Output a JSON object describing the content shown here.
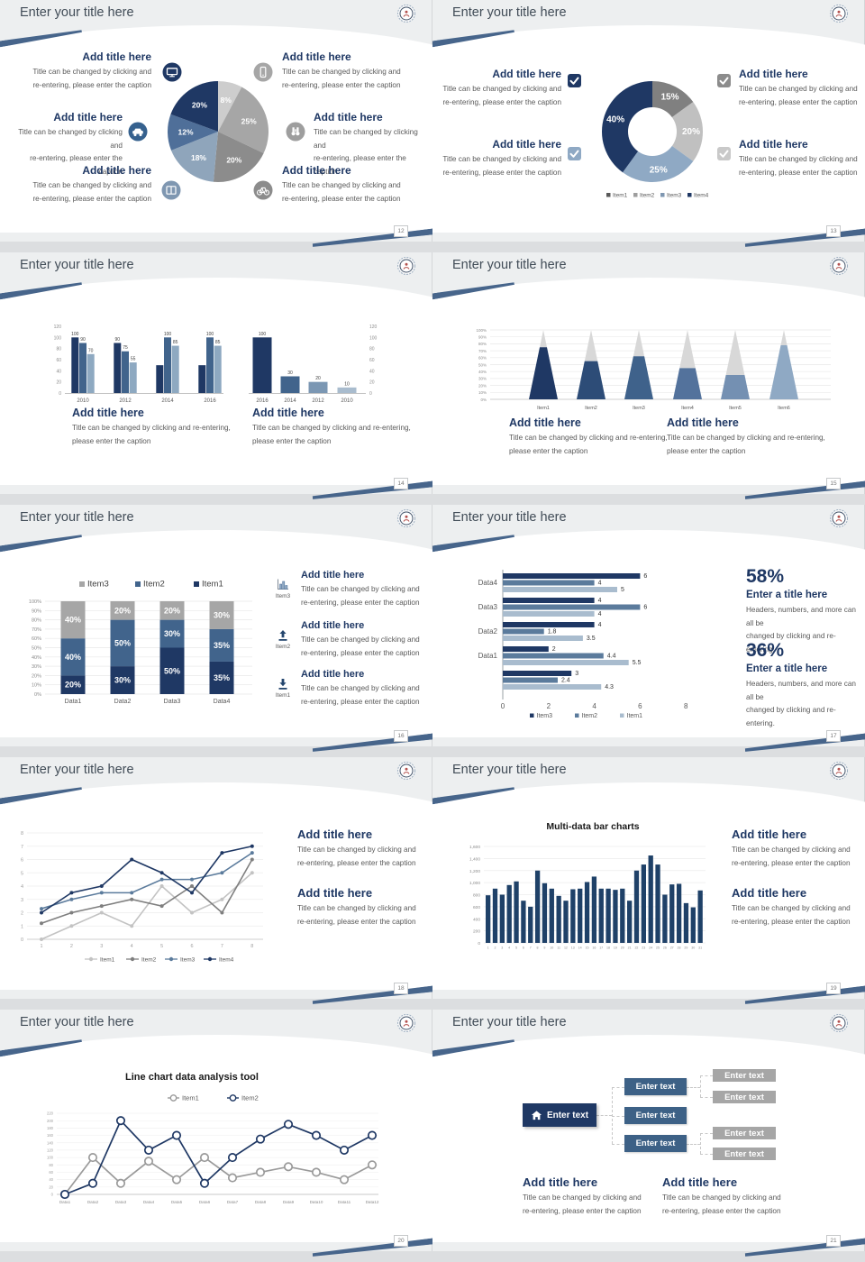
{
  "slide_title": "Enter your title here",
  "colors": {
    "navy": "#1f3864",
    "steel": "#41648c",
    "light_steel": "#8ea9c1",
    "ribbon": "#47658b",
    "title_text": "#414c57",
    "caption_text": "#595959"
  },
  "slides": [
    {
      "page": "12",
      "blocks": [
        {
          "title": "Add title here",
          "caption": [
            "Title can be changed by clicking and",
            "re-entering, please enter the caption"
          ]
        },
        {
          "title": "Add title here",
          "caption": [
            "Title can be changed by clicking and",
            "re-entering, please enter the caption"
          ]
        },
        {
          "title": "Add title here",
          "caption": [
            "Title can be changed by clicking and",
            "re-entering, please enter the caption"
          ]
        },
        {
          "title": "Add title here",
          "caption": [
            "Title can be changed by clicking and",
            "re-entering, please enter the caption"
          ]
        },
        {
          "title": "Add title here",
          "caption": [
            "Title can be changed by clicking and",
            "re-entering, please enter the caption"
          ]
        },
        {
          "title": "Add title here",
          "caption": [
            "Title can be changed by clicking and",
            "re-entering, please enter the caption"
          ]
        }
      ],
      "icons": [
        "monitor-icon",
        "smartphone-icon",
        "car-icon",
        "binoculars-icon",
        "book-icon",
        "bicycle-icon"
      ]
    },
    {
      "page": "13",
      "blocks": [
        {
          "title": "Add title here",
          "caption": [
            "Title can be changed by clicking and",
            "re-entering, please enter the caption"
          ]
        },
        {
          "title": "Add title here",
          "caption": [
            "Title can be changed by clicking and",
            "re-entering, please enter the caption"
          ]
        },
        {
          "title": "Add title here",
          "caption": [
            "Title can be changed by clicking and",
            "re-entering, please enter the caption"
          ]
        },
        {
          "title": "Add title here",
          "caption": [
            "Title can be changed by clicking and",
            "re-entering, please enter the caption"
          ]
        }
      ]
    },
    {
      "page": "14",
      "blocks": [
        {
          "title": "Add title here",
          "caption": [
            "Title can be changed by clicking and re-entering,",
            "please enter the caption"
          ]
        },
        {
          "title": "Add title here",
          "caption": [
            "Title can be changed by clicking and re-entering,",
            "please enter the caption"
          ]
        }
      ]
    },
    {
      "page": "15",
      "blocks": [
        {
          "title": "Add title here",
          "caption": [
            "Title can be changed by clicking and re-entering,",
            "please enter the caption"
          ]
        },
        {
          "title": "Add title here",
          "caption": [
            "Title can be changed by clicking and re-entering,",
            "please enter the caption"
          ]
        }
      ]
    },
    {
      "page": "16",
      "blocks": [
        {
          "title": "Add title here",
          "caption": [
            "Title can be changed by clicking and",
            "re-entering, please enter the caption"
          ]
        },
        {
          "title": "Add title here",
          "caption": [
            "Title can be changed by clicking and",
            "re-entering, please enter the caption"
          ]
        },
        {
          "title": "Add title here",
          "caption": [
            "Title can be changed by clicking and",
            "re-entering, please enter the caption"
          ]
        }
      ],
      "items": [
        {
          "icon": "bar-chart-icon",
          "label": "Item3"
        },
        {
          "icon": "upload-icon",
          "label": "Item2"
        },
        {
          "icon": "download-icon",
          "label": "Item1"
        }
      ]
    },
    {
      "page": "17",
      "stats": [
        {
          "value": "58%",
          "title": "Enter a title here",
          "caption": [
            "Headers, numbers, and more can all be",
            "changed by clicking and re-entering."
          ]
        },
        {
          "value": "36%",
          "title": "Enter a title here",
          "caption": [
            "Headers, numbers, and more can all be",
            "changed by clicking and re-entering."
          ]
        }
      ]
    },
    {
      "page": "18",
      "blocks": [
        {
          "title": "Add title here",
          "caption": [
            "Title can be changed by clicking and",
            "re-entering, please enter the caption"
          ]
        },
        {
          "title": "Add title here",
          "caption": [
            "Title can be changed by clicking and",
            "re-entering, please enter the caption"
          ]
        }
      ]
    },
    {
      "page": "19",
      "blocks": [
        {
          "title": "Add title here",
          "caption": [
            "Title can be changed by clicking and",
            "re-entering, please enter the caption"
          ]
        },
        {
          "title": "Add title here",
          "caption": [
            "Title can be changed by clicking and",
            "re-entering, please enter the caption"
          ]
        }
      ]
    },
    {
      "page": "20",
      "blocks": []
    },
    {
      "page": "21",
      "blocks": [
        {
          "title": "Add title here",
          "caption": [
            "Title can be changed by clicking and",
            "re-entering, please enter the caption"
          ]
        },
        {
          "title": "Add title here",
          "caption": [
            "Title can be changed by clicking and",
            "re-entering, please enter the caption"
          ]
        }
      ]
    }
  ],
  "chart_data": [
    {
      "type": "pie",
      "slices": [
        {
          "label": "8%",
          "value": 8,
          "color": "#cdcdcd"
        },
        {
          "label": "25%",
          "value": 25,
          "color": "#a6a6a6"
        },
        {
          "label": "20%",
          "value": 20,
          "color": "#8c8c8c"
        },
        {
          "label": "18%",
          "value": 18,
          "color": "#8fa5bb"
        },
        {
          "label": "12%",
          "value": 12,
          "color": "#4f6f99"
        },
        {
          "label": "20%",
          "value": 20,
          "color": "#1f3864"
        }
      ]
    },
    {
      "type": "pie",
      "donut": true,
      "slices": [
        {
          "label": "15%",
          "value": 15,
          "color": "#808080"
        },
        {
          "label": "20%",
          "value": 20,
          "color": "#c0c0c0"
        },
        {
          "label": "25%",
          "value": 25,
          "color": "#8fa9c4"
        },
        {
          "label": "40%",
          "value": 40,
          "color": "#1f3864"
        }
      ],
      "legend": [
        {
          "label": "Item1",
          "color": "#595959"
        },
        {
          "label": "Item2",
          "color": "#9e9e9e"
        },
        {
          "label": "Item3",
          "color": "#7f97b1"
        },
        {
          "label": "Item4",
          "color": "#1f3864"
        }
      ]
    },
    {
      "type": "bar",
      "categories": [
        "2010",
        "2012",
        "2014",
        "2016"
      ],
      "ymax": 120,
      "yticks": [
        "0",
        "20",
        "40",
        "60",
        "80",
        "100",
        "120"
      ],
      "series": [
        {
          "name": "series1",
          "color": "#1f3864",
          "values": [
            100,
            90,
            50,
            50
          ],
          "labels": [
            "100",
            "90",
            "",
            ""
          ]
        },
        {
          "name": "series2",
          "color": "#41648c",
          "values": [
            90,
            75,
            100,
            100
          ],
          "labels": [
            "90",
            "75",
            "100",
            "100"
          ]
        },
        {
          "name": "series3",
          "color": "#8ea9c1",
          "values": [
            70,
            55,
            85,
            85
          ],
          "labels": [
            "70",
            "55",
            "85",
            "85"
          ]
        }
      ]
    },
    {
      "type": "bar",
      "categories": [
        "2016",
        "2014",
        "2012",
        "2010"
      ],
      "ymax": 120,
      "yticks": [
        "0",
        "20",
        "40",
        "60",
        "80",
        "100",
        "120"
      ],
      "values": [
        100,
        30,
        20,
        10
      ],
      "labels": [
        "100",
        "30",
        "20",
        "10"
      ],
      "bar_colors": [
        "#1f3864",
        "#41648c",
        "#7b97b3",
        "#a9bcce"
      ]
    },
    {
      "type": "pyramid",
      "categories": [
        "Item1",
        "Item2",
        "Item3",
        "Item4",
        "Item5",
        "Item6"
      ],
      "fill_percent": [
        75,
        55,
        62,
        45,
        35,
        78
      ],
      "colors": [
        "#1f3864",
        "#2d4c77",
        "#3f628b",
        "#53729c",
        "#7490b2",
        "#8fa9c4"
      ],
      "top_color": "#d8d8d8",
      "yticks": [
        "0%",
        "10%",
        "20%",
        "30%",
        "40%",
        "50%",
        "60%",
        "70%",
        "80%",
        "90%",
        "100%"
      ]
    },
    {
      "type": "stacked_bar",
      "categories": [
        "Data1",
        "Data2",
        "Data3",
        "Data4"
      ],
      "yticks": [
        "0%",
        "10%",
        "20%",
        "30%",
        "40%",
        "50%",
        "60%",
        "70%",
        "80%",
        "90%",
        "100%"
      ],
      "legend_order": [
        "Item3",
        "Item2",
        "Item1"
      ],
      "series": [
        {
          "name": "Item1",
          "color": "#1f3864",
          "values": [
            20,
            30,
            50,
            35
          ]
        },
        {
          "name": "Item2",
          "color": "#41648c",
          "values": [
            40,
            50,
            30,
            35
          ]
        },
        {
          "name": "Item3",
          "color": "#a6a6a6",
          "values": [
            40,
            20,
            20,
            30
          ]
        }
      ]
    },
    {
      "type": "hbar",
      "xmax": 8,
      "xticks": [
        "0",
        "2",
        "4",
        "6",
        "8"
      ],
      "legend": [
        "Item3",
        "Item2",
        "Item1"
      ],
      "series_colors": [
        "#1f3864",
        "#5b7b9c",
        "#a9bcce"
      ],
      "groups": [
        {
          "label": "Data4",
          "values": [
            6,
            4,
            5
          ],
          "labels": [
            "6",
            "4",
            "5"
          ]
        },
        {
          "label": "Data3",
          "values": [
            4,
            6,
            4
          ],
          "labels": [
            "4",
            "6",
            "4"
          ]
        },
        {
          "label": "Data2",
          "values": [
            4,
            1.8,
            3.5
          ],
          "labels": [
            "4",
            "1.8",
            "3.5"
          ]
        },
        {
          "label": "Data1",
          "values": [
            2,
            4.4,
            5.5
          ],
          "labels": [
            "2",
            "4.4",
            "5.5"
          ]
        },
        {
          "label": "",
          "values": [
            3,
            2.4,
            4.3
          ],
          "labels": [
            "3",
            "2.4",
            "4.3"
          ]
        }
      ]
    },
    {
      "type": "line",
      "x": [
        "1",
        "2",
        "3",
        "4",
        "5",
        "6",
        "7",
        "8"
      ],
      "ymax": 8,
      "yticks": [
        "0",
        "1",
        "2",
        "3",
        "4",
        "5",
        "6",
        "7",
        "8"
      ],
      "series": [
        {
          "name": "Item1",
          "color": "#c3c3c3",
          "values": [
            0,
            1,
            2,
            1,
            4,
            2,
            3,
            5
          ]
        },
        {
          "name": "Item2",
          "color": "#7f7f7f",
          "values": [
            1.2,
            2,
            2.5,
            3,
            2.5,
            4,
            2,
            6
          ]
        },
        {
          "name": "Item3",
          "color": "#5b7b9c",
          "values": [
            2.3,
            3,
            3.5,
            3.5,
            4.5,
            4.5,
            5,
            6.5
          ]
        },
        {
          "name": "Item4",
          "color": "#1f3864",
          "values": [
            2,
            3.5,
            4,
            6,
            5,
            3.5,
            6.5,
            7
          ]
        }
      ]
    },
    {
      "type": "bar",
      "title": "Multi-data bar charts",
      "color": "#1f4168",
      "ymax": 1600,
      "yticks": [
        "0",
        "200",
        "400",
        "600",
        "800",
        "1,000",
        "1,200",
        "1,400",
        "1,600"
      ],
      "categories": [
        "1",
        "2",
        "3",
        "4",
        "5",
        "6",
        "7",
        "8",
        "9",
        "10",
        "11",
        "12",
        "13",
        "14",
        "15",
        "16",
        "17",
        "18",
        "19",
        "20",
        "21",
        "22",
        "23",
        "24",
        "25",
        "26",
        "27",
        "28",
        "29",
        "30",
        "31"
      ],
      "values": [
        790,
        900,
        800,
        960,
        1020,
        700,
        600,
        1200,
        990,
        900,
        780,
        700,
        890,
        900,
        1010,
        1100,
        900,
        900,
        880,
        900,
        700,
        1200,
        1300,
        1450,
        1300,
        800,
        970,
        980,
        660,
        590,
        870
      ]
    },
    {
      "type": "line",
      "title": "Line chart data analysis tool",
      "x": [
        "Data1",
        "Data2",
        "Data3",
        "Data4",
        "Data5",
        "Data6",
        "Data7",
        "Data8",
        "Data9",
        "Data10",
        "Data11",
        "Data12"
      ],
      "ymax": 220,
      "yticks": [
        "0",
        "20",
        "40",
        "60",
        "80",
        "100",
        "120",
        "140",
        "160",
        "180",
        "200",
        "220"
      ],
      "series": [
        {
          "name": "Item1",
          "color": "#9a9a9a",
          "values": [
            0,
            100,
            30,
            90,
            40,
            100,
            45,
            60,
            75,
            60,
            40,
            80
          ]
        },
        {
          "name": "Item2",
          "color": "#1f3864",
          "values": [
            0,
            30,
            200,
            120,
            160,
            30,
            100,
            150,
            190,
            160,
            120,
            160
          ]
        }
      ]
    },
    {
      "type": "org-tree",
      "root": "Enter text",
      "middle": [
        "Enter text",
        "Enter text",
        "Enter text"
      ],
      "leaves": [
        "Enter text",
        "Enter text",
        "Enter text",
        "Enter text"
      ]
    }
  ]
}
